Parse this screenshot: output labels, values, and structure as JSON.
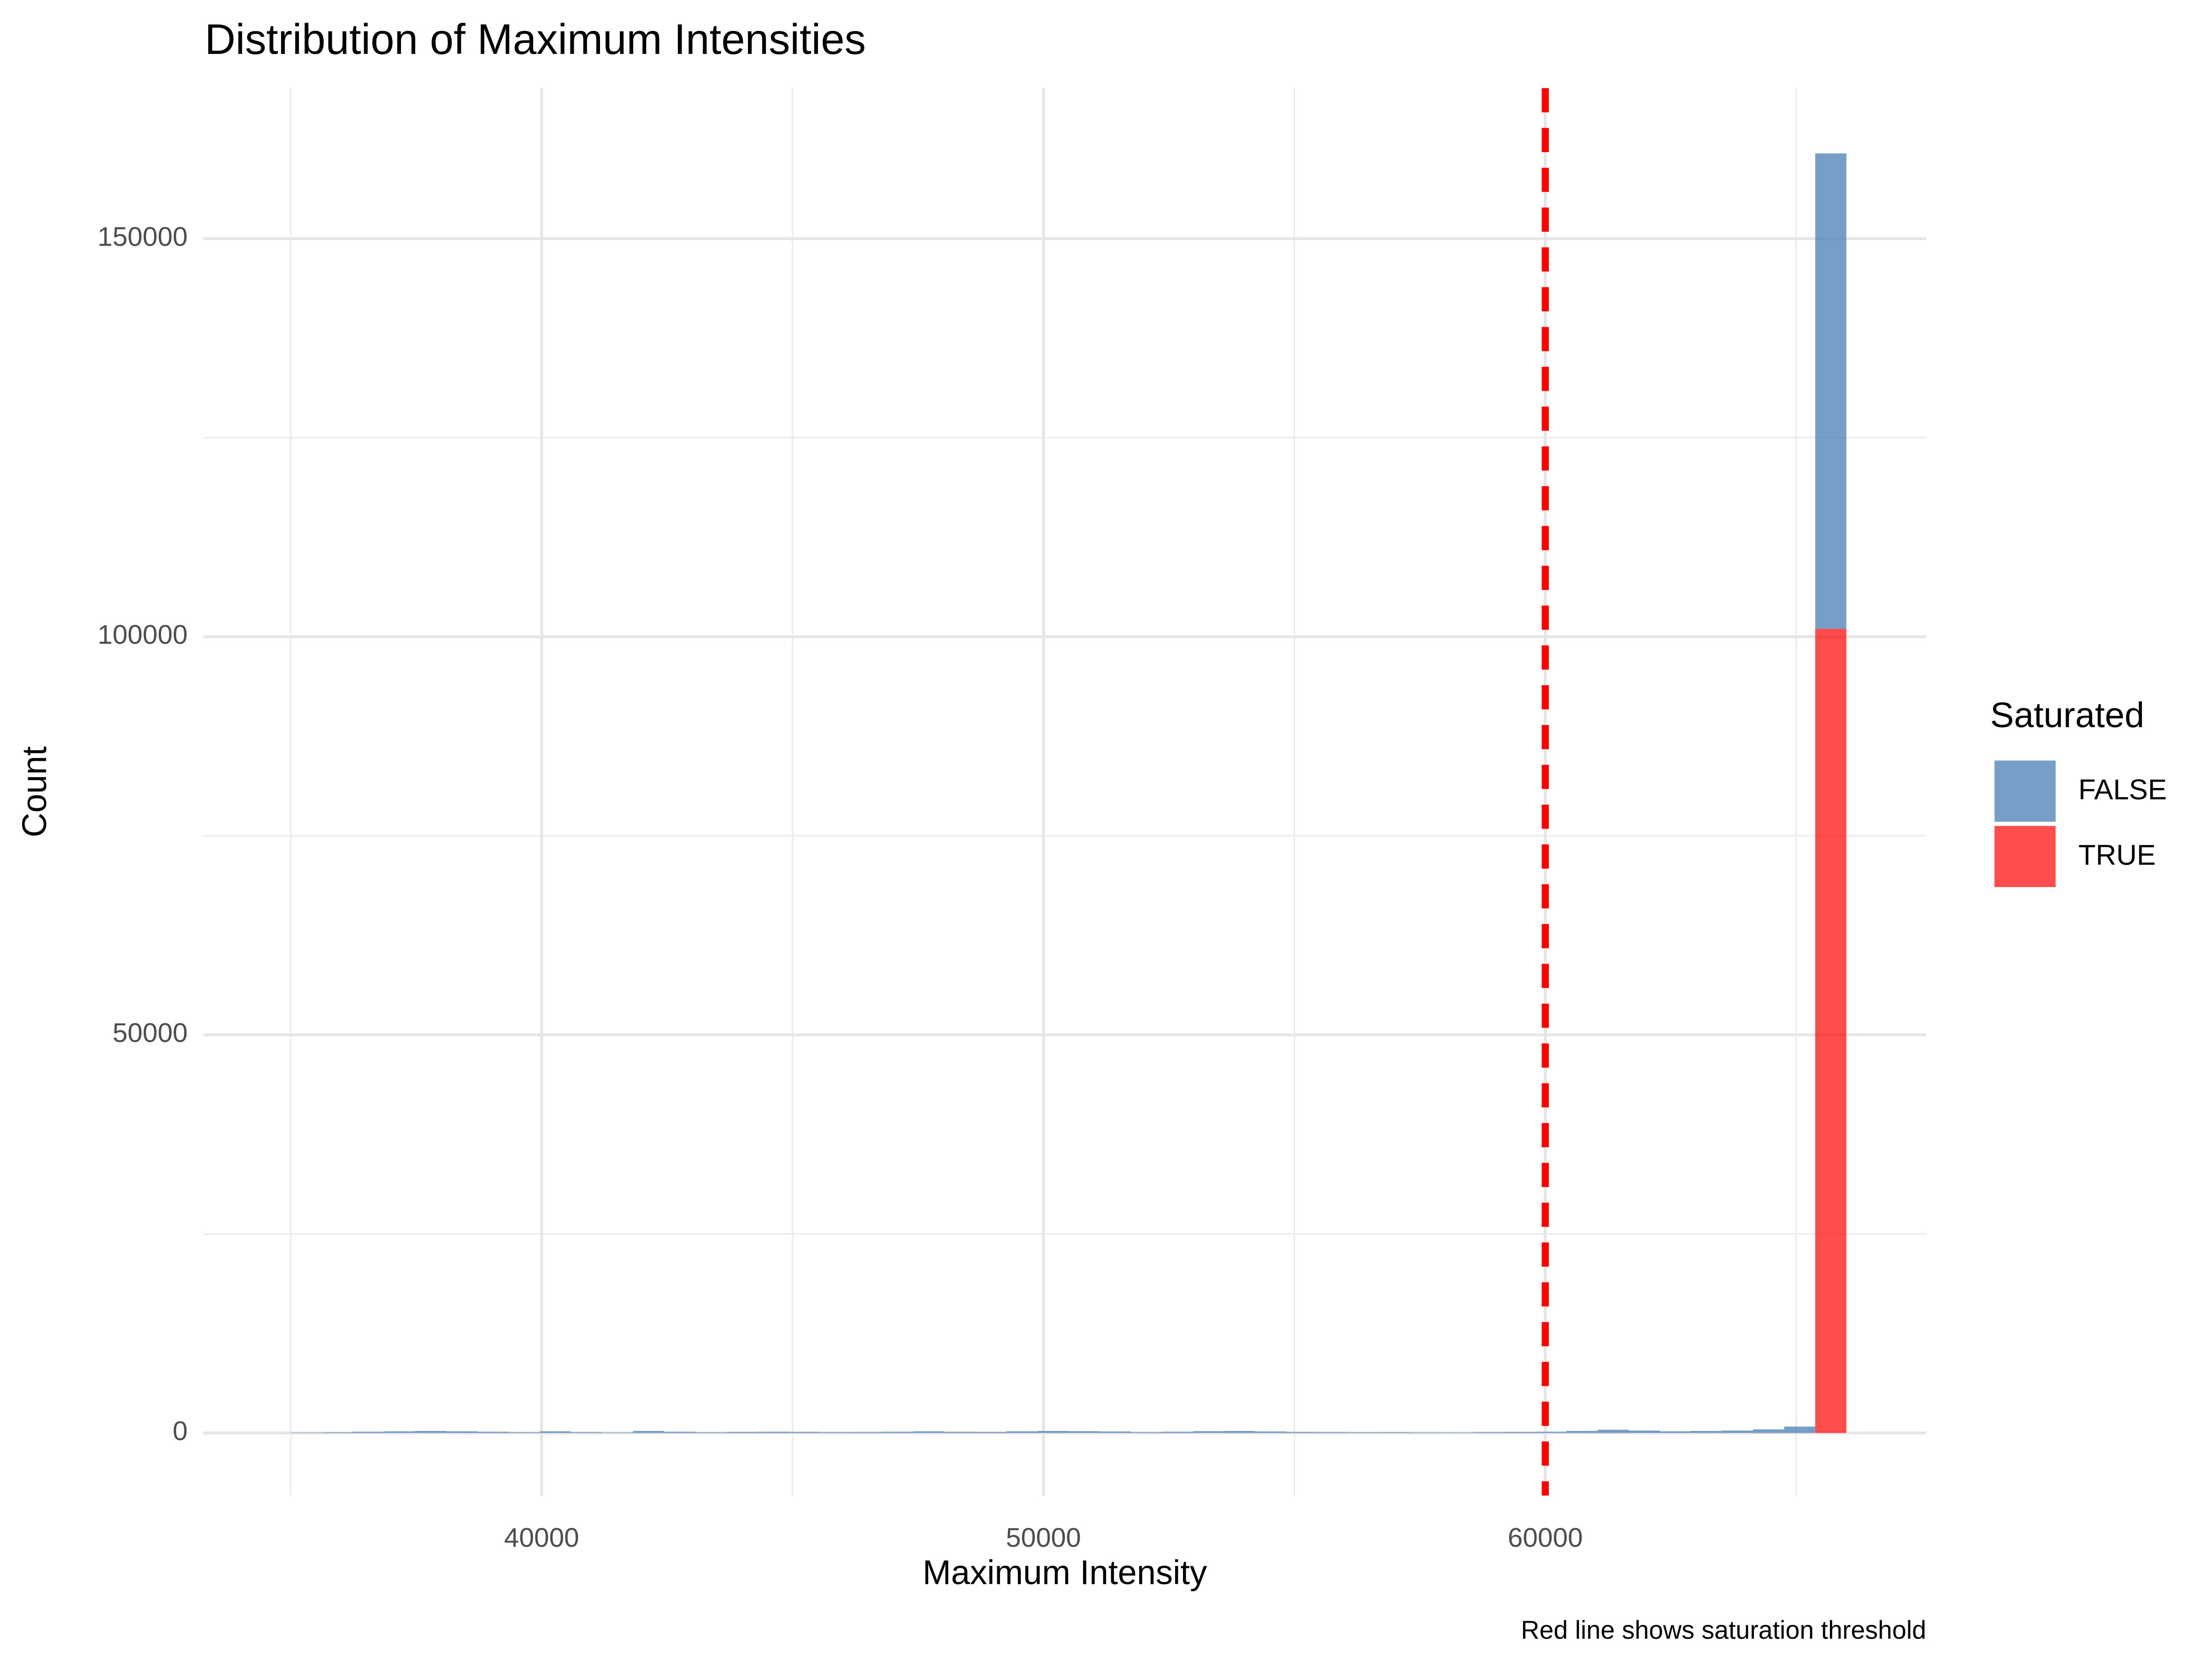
{
  "chart_data": {
    "type": "histogram",
    "title": "Distribution of Maximum Intensities",
    "x_label": "Maximum Intensity",
    "y_label": "Count",
    "caption": "Red line shows saturation threshold",
    "legend_title": "Saturated",
    "legend_position": "right",
    "stacked": true,
    "grid": true,
    "bins": [
      35000,
      35620,
      36240,
      36860,
      37480,
      38100,
      38720,
      39340,
      39960,
      40580,
      41200,
      41820,
      42440,
      43060,
      43680,
      44300,
      44920,
      45540,
      46160,
      46780,
      47400,
      48020,
      48640,
      49260,
      49880,
      50500,
      51120,
      51740,
      52360,
      52980,
      53600,
      54220,
      54840,
      55460,
      56080,
      56700,
      57320,
      57940,
      58560,
      59180,
      59800,
      60420,
      61040,
      61660,
      62280,
      62900,
      63520,
      64140,
      64760,
      65380,
      66000
    ],
    "series": [
      {
        "name": "TRUE",
        "color": "#ff0000",
        "opacity": 0.7,
        "values": [
          0,
          0,
          0,
          0,
          0,
          0,
          0,
          0,
          0,
          0,
          0,
          0,
          0,
          0,
          0,
          0,
          0,
          0,
          0,
          0,
          0,
          0,
          0,
          0,
          0,
          0,
          0,
          0,
          0,
          0,
          0,
          0,
          0,
          0,
          0,
          0,
          0,
          0,
          0,
          0,
          0,
          0,
          0,
          0,
          0,
          0,
          0,
          0,
          0,
          101000
        ]
      },
      {
        "name": "FALSE",
        "color": "#4a7db3",
        "opacity": 0.75,
        "values": [
          50,
          80,
          150,
          200,
          250,
          200,
          150,
          90,
          200,
          100,
          60,
          250,
          150,
          80,
          120,
          150,
          130,
          100,
          110,
          150,
          200,
          140,
          120,
          200,
          250,
          220,
          180,
          100,
          150,
          220,
          250,
          180,
          120,
          100,
          80,
          90,
          70,
          60,
          100,
          120,
          150,
          250,
          400,
          300,
          200,
          250,
          300,
          450,
          800,
          59700
        ]
      }
    ],
    "xlim": [
      33258,
      67592
    ],
    "ylim": [
      -7860,
      168900
    ],
    "xticks": [
      40000,
      50000,
      60000
    ],
    "x_minor_ticks": [
      35000,
      45000,
      55000,
      65000
    ],
    "yticks": [
      0,
      50000,
      100000,
      150000
    ],
    "y_minor_ticks": [
      25000,
      75000,
      125000
    ],
    "vline": {
      "value": 60000,
      "color": "#ff0000"
    }
  }
}
